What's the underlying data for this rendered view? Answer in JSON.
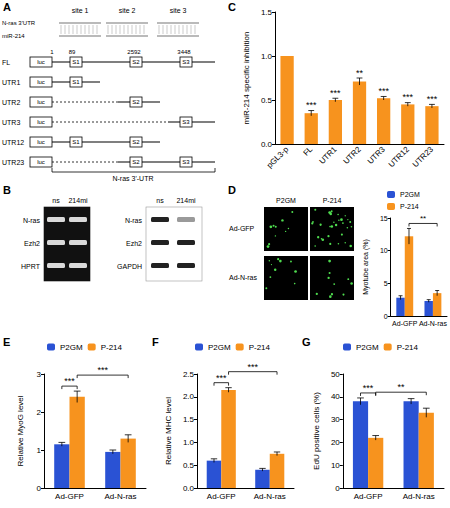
{
  "panel_labels": [
    "A",
    "B",
    "C",
    "D",
    "E",
    "F",
    "G"
  ],
  "diagram_a": {
    "sites": [
      "site 1",
      "site 2",
      "site 3"
    ],
    "sequence_labels": [
      "N-ras 3'UTR",
      "miR-214"
    ],
    "positions": [
      "1",
      "89",
      "2592",
      "3448"
    ],
    "luc": "luc",
    "site_boxes": [
      "S1",
      "S2",
      "S3"
    ],
    "constructs": [
      {
        "name": "FL",
        "sites": [
          "S1",
          "S2",
          "S3"
        ]
      },
      {
        "name": "UTR1",
        "sites": [
          "S1"
        ]
      },
      {
        "name": "UTR2",
        "sites": [
          "S2"
        ]
      },
      {
        "name": "UTR3",
        "sites": [
          "S3"
        ]
      },
      {
        "name": "UTR12",
        "sites": [
          "S1",
          "S2"
        ]
      },
      {
        "name": "UTR23",
        "sites": [
          "S2",
          "S3"
        ]
      }
    ],
    "bracket": "N-ras 3'-UTR"
  },
  "blots": [
    {
      "lanes": [
        "ns",
        "214mi"
      ],
      "rows": [
        "N-ras",
        "Ezh2",
        "HPRT"
      ]
    },
    {
      "lanes": [
        "ns",
        "214mi"
      ],
      "rows": [
        "N-ras",
        "Ezh2",
        "GAPDH"
      ]
    }
  ],
  "images_d": {
    "columns": [
      "P2GM",
      "P-214"
    ],
    "rows": [
      "Ad-GFP",
      "Ad-N-ras"
    ]
  },
  "chart_data": [
    {
      "type": "bar",
      "y_label": "miR-214 specific inhibition",
      "categories": [
        "pGL3-p",
        "FL",
        "UTR1",
        "UTR2",
        "UTR3",
        "UTR12",
        "UTR23"
      ],
      "values": [
        1.0,
        0.35,
        0.5,
        0.71,
        0.52,
        0.45,
        0.43
      ],
      "errors": [
        0,
        0.03,
        0.02,
        0.04,
        0.02,
        0.02,
        0.02
      ],
      "annotations": [
        null,
        "***",
        "***",
        "**",
        "***",
        "***",
        "***"
      ],
      "color": "#F7931E",
      "ylim": [
        0,
        1.5
      ],
      "yticks": [
        {
          "value": 0,
          "label": "0.0"
        },
        0.5,
        {
          "value": 1,
          "label": "1.0"
        },
        1.5
      ],
      "grid": false
    },
    {
      "type": "bar",
      "y_label": "Myotube area (%)",
      "categories": [
        "Ad-GFP",
        "Ad-N-ras"
      ],
      "series": [
        {
          "name": "P2GM",
          "color": "#2A52D4",
          "values": [
            2.8,
            2.3
          ],
          "errors": [
            0.3,
            0.2
          ]
        },
        {
          "name": "P-214",
          "color": "#F7931E",
          "values": [
            12.2,
            3.5
          ],
          "errors": [
            1.2,
            0.4
          ]
        }
      ],
      "comparisons": [
        {
          "from": [
            "Ad-GFP",
            "P-214"
          ],
          "to": [
            "Ad-N-ras",
            "P-214"
          ],
          "label": "**"
        }
      ],
      "ylim": [
        0,
        15
      ],
      "yticks": [
        0,
        5,
        10,
        15
      ],
      "legend": "upper left",
      "grid": false
    },
    {
      "type": "bar",
      "y_label": "Relative MyoG level",
      "categories": [
        "Ad-GFP",
        "Ad-N-ras"
      ],
      "series": [
        {
          "name": "P2GM",
          "color": "#2A52D4",
          "values": [
            1.15,
            0.95
          ],
          "errors": [
            0.05,
            0.05
          ]
        },
        {
          "name": "P-214",
          "color": "#F7931E",
          "values": [
            2.4,
            1.3
          ],
          "errors": [
            0.15,
            0.1
          ]
        }
      ],
      "comparisons": [
        {
          "from": [
            "Ad-GFP",
            "P2GM"
          ],
          "to": [
            "Ad-GFP",
            "P-214"
          ],
          "label": "***"
        },
        {
          "from": [
            "Ad-GFP",
            "P-214"
          ],
          "to": [
            "Ad-N-ras",
            "P-214"
          ],
          "label": "***"
        }
      ],
      "ylim": [
        0,
        3
      ],
      "yticks": [
        0,
        1,
        2,
        3
      ],
      "legend": "upper left",
      "grid": false
    },
    {
      "type": "bar",
      "y_label": "Relative MHC level",
      "categories": [
        "Ad-GFP",
        "Ad-N-ras"
      ],
      "series": [
        {
          "name": "P2GM",
          "color": "#2A52D4",
          "values": [
            0.6,
            0.4
          ],
          "errors": [
            0.04,
            0.03
          ]
        },
        {
          "name": "P-214",
          "color": "#F7931E",
          "values": [
            2.15,
            0.75
          ],
          "errors": [
            0.05,
            0.04
          ]
        }
      ],
      "comparisons": [
        {
          "from": [
            "Ad-GFP",
            "P2GM"
          ],
          "to": [
            "Ad-GFP",
            "P-214"
          ],
          "label": "***"
        },
        {
          "from": [
            "Ad-GFP",
            "P-214"
          ],
          "to": [
            "Ad-N-ras",
            "P-214"
          ],
          "label": "***"
        }
      ],
      "ylim": [
        0,
        2.5
      ],
      "yticks": [
        {
          "value": 0,
          "label": "0.0"
        },
        0.5,
        {
          "value": 1,
          "label": "1.0"
        },
        1.5,
        {
          "value": 2,
          "label": "2.0"
        },
        2.5
      ],
      "legend": "upper left",
      "grid": false
    },
    {
      "type": "bar",
      "y_label": "EdU positive cells (%)",
      "categories": [
        "Ad-GFP",
        "Ad-N-ras"
      ],
      "series": [
        {
          "name": "P2GM",
          "color": "#2A52D4",
          "values": [
            38,
            38
          ],
          "errors": [
            1.5,
            1.2
          ]
        },
        {
          "name": "P-214",
          "color": "#F7931E",
          "values": [
            22,
            33
          ],
          "errors": [
            1,
            2
          ]
        }
      ],
      "comparisons": [
        {
          "from": [
            "Ad-GFP",
            "P2GM"
          ],
          "to": [
            "Ad-GFP",
            "P-214"
          ],
          "label": "***"
        },
        {
          "from": [
            "Ad-GFP",
            "P-214"
          ],
          "to": [
            "Ad-N-ras",
            "P-214"
          ],
          "label": "**"
        }
      ],
      "ylim": [
        0,
        50
      ],
      "yticks": [
        0,
        10,
        20,
        30,
        40,
        50
      ],
      "legend": "upper left",
      "grid": false
    }
  ]
}
